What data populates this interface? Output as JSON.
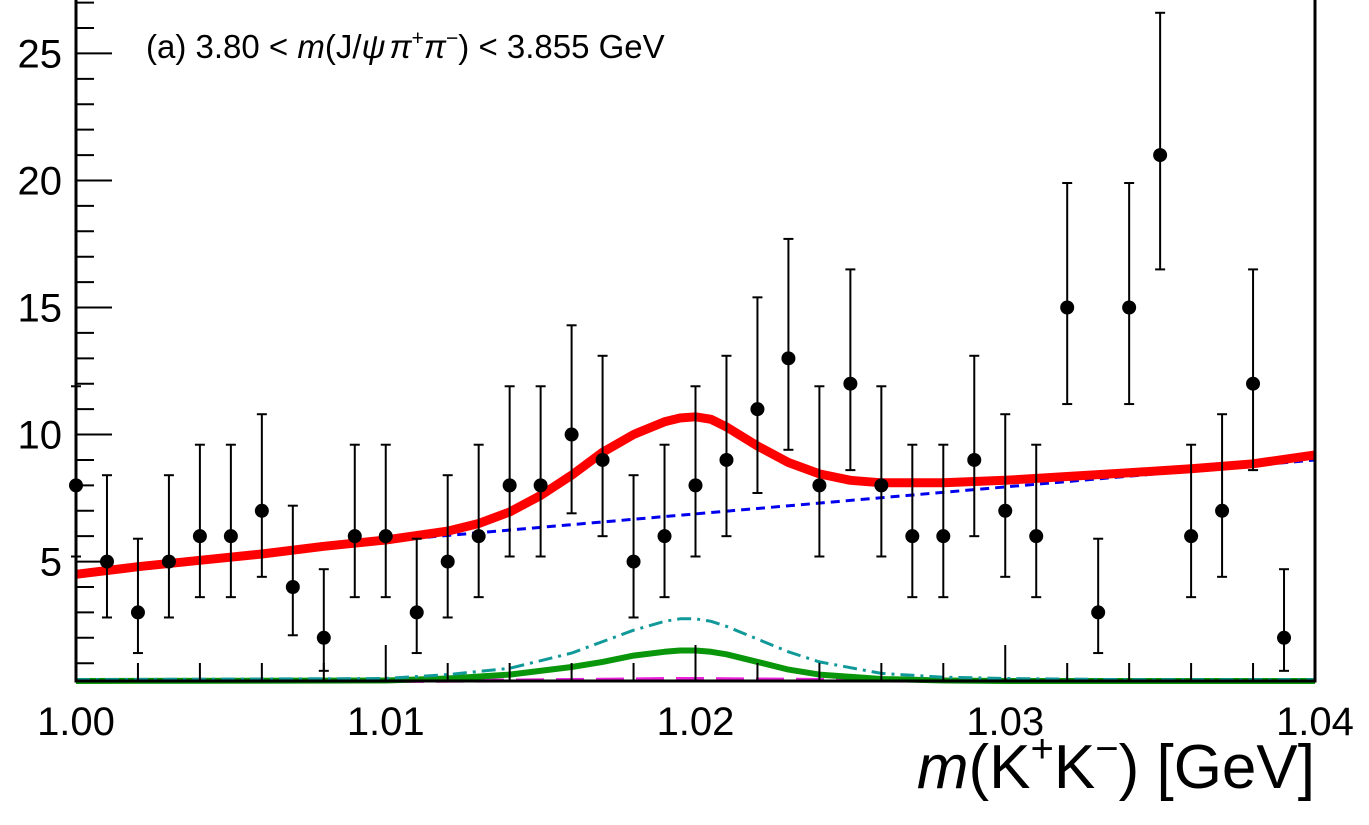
{
  "chart_data": {
    "type": "scatter",
    "annotation": {
      "prefix": "(a) 3.80 < ",
      "m": "m",
      "open": "(J/",
      "psi": "ψ",
      "pi1": "π",
      "sup_plus": "+",
      "pi2": "π",
      "sup_minus": "−",
      "close": ") < 3.855 GeV"
    },
    "xlabel": {
      "m": "m",
      "open": "(K",
      "sup_plus": "+",
      "k": "K",
      "sup_minus": "−",
      "rest": ") [GeV]"
    },
    "xlim": [
      1.0,
      1.04
    ],
    "ylim": [
      0.3,
      27.3
    ],
    "x_ticks": [
      1.0,
      1.01,
      1.02,
      1.03,
      1.04
    ],
    "x_tick_labels": [
      "1.00",
      "1.01",
      "1.02",
      "1.03",
      "1.04"
    ],
    "y_ticks": [
      5,
      10,
      15,
      20,
      25
    ],
    "y_tick_labels": [
      "5",
      "10",
      "15",
      "20",
      "25"
    ],
    "grid": false,
    "data_points": {
      "x": [
        1.0,
        1.001,
        1.002,
        1.003,
        1.004,
        1.005,
        1.006,
        1.007,
        1.008,
        1.009,
        1.01,
        1.011,
        1.012,
        1.013,
        1.014,
        1.015,
        1.016,
        1.017,
        1.018,
        1.019,
        1.02,
        1.021,
        1.022,
        1.023,
        1.024,
        1.025,
        1.026,
        1.027,
        1.028,
        1.029,
        1.03,
        1.031,
        1.032,
        1.033,
        1.034,
        1.035,
        1.036,
        1.037,
        1.038,
        1.039
      ],
      "y": [
        8,
        5,
        3,
        5,
        6,
        6,
        7,
        4,
        2,
        6,
        6,
        3,
        5,
        6,
        8,
        8,
        10,
        9,
        5,
        6,
        8,
        9,
        11,
        13,
        8,
        12,
        8,
        6,
        6,
        9,
        7,
        6,
        15,
        3,
        15,
        21,
        6,
        7,
        12,
        2
      ],
      "err_up": [
        3.9,
        3.4,
        2.9,
        3.4,
        3.6,
        3.6,
        3.8,
        3.2,
        2.7,
        3.6,
        3.6,
        2.9,
        3.4,
        3.6,
        3.9,
        3.9,
        4.3,
        4.1,
        3.4,
        3.6,
        3.9,
        4.1,
        4.4,
        4.7,
        3.9,
        4.5,
        3.9,
        3.6,
        3.6,
        4.1,
        3.8,
        3.6,
        4.9,
        2.9,
        4.9,
        5.6,
        3.6,
        3.8,
        4.5,
        2.7
      ],
      "err_down": [
        2.8,
        2.2,
        1.6,
        2.2,
        2.4,
        2.4,
        2.6,
        1.9,
        1.3,
        2.4,
        2.4,
        1.6,
        2.2,
        2.4,
        2.8,
        2.8,
        3.1,
        3.0,
        2.2,
        2.4,
        2.8,
        3.0,
        3.3,
        3.6,
        2.8,
        3.4,
        2.8,
        2.4,
        2.4,
        3.0,
        2.6,
        2.4,
        3.8,
        1.6,
        3.8,
        4.5,
        2.4,
        2.6,
        3.4,
        1.3
      ]
    },
    "curves": {
      "total_fit": {
        "x": [
          1.0,
          1.002,
          1.004,
          1.006,
          1.008,
          1.01,
          1.012,
          1.013,
          1.014,
          1.015,
          1.016,
          1.017,
          1.018,
          1.019,
          1.0195,
          1.02,
          1.0205,
          1.021,
          1.022,
          1.023,
          1.024,
          1.025,
          1.026,
          1.027,
          1.028,
          1.03,
          1.032,
          1.034,
          1.036,
          1.038,
          1.04
        ],
        "y": [
          4.5,
          4.8,
          5.05,
          5.3,
          5.6,
          5.85,
          6.2,
          6.5,
          6.95,
          7.6,
          8.4,
          9.3,
          10.0,
          10.5,
          10.65,
          10.7,
          10.6,
          10.3,
          9.55,
          8.9,
          8.45,
          8.2,
          8.1,
          8.1,
          8.1,
          8.2,
          8.35,
          8.5,
          8.65,
          8.85,
          9.2
        ]
      },
      "background": {
        "x": [
          1.007,
          1.04
        ],
        "y": [
          5.5,
          9.0
        ]
      },
      "dashdot_component": {
        "x": [
          1.0,
          1.01,
          1.012,
          1.014,
          1.016,
          1.017,
          1.018,
          1.019,
          1.0195,
          1.02,
          1.0205,
          1.021,
          1.022,
          1.023,
          1.024,
          1.026,
          1.028,
          1.03,
          1.034,
          1.04
        ],
        "y": [
          0.35,
          0.4,
          0.55,
          0.8,
          1.4,
          1.85,
          2.3,
          2.65,
          2.75,
          2.75,
          2.65,
          2.45,
          1.95,
          1.45,
          1.05,
          0.6,
          0.45,
          0.4,
          0.35,
          0.35
        ]
      },
      "green_component": {
        "x": [
          1.0,
          1.01,
          1.012,
          1.014,
          1.016,
          1.017,
          1.018,
          1.019,
          1.0195,
          1.02,
          1.0205,
          1.021,
          1.022,
          1.023,
          1.024,
          1.026,
          1.028,
          1.03,
          1.04
        ],
        "y": [
          0.3,
          0.32,
          0.4,
          0.55,
          0.85,
          1.05,
          1.3,
          1.45,
          1.5,
          1.5,
          1.45,
          1.35,
          1.05,
          0.75,
          0.55,
          0.38,
          0.32,
          0.3,
          0.3
        ]
      },
      "magenta_component": {
        "x": [
          1.0,
          1.01,
          1.014,
          1.017,
          1.019,
          1.02,
          1.021,
          1.023,
          1.026,
          1.03,
          1.04
        ],
        "y": [
          0.3,
          0.3,
          0.32,
          0.35,
          0.38,
          0.38,
          0.37,
          0.35,
          0.32,
          0.3,
          0.3
        ]
      }
    },
    "colors": {
      "total_fit": "#ff0000",
      "background": "#0000ee",
      "dashdot_component": "#119999",
      "green_component": "#0a960a",
      "magenta_component": "#ee22dd",
      "points": "#000000"
    }
  }
}
